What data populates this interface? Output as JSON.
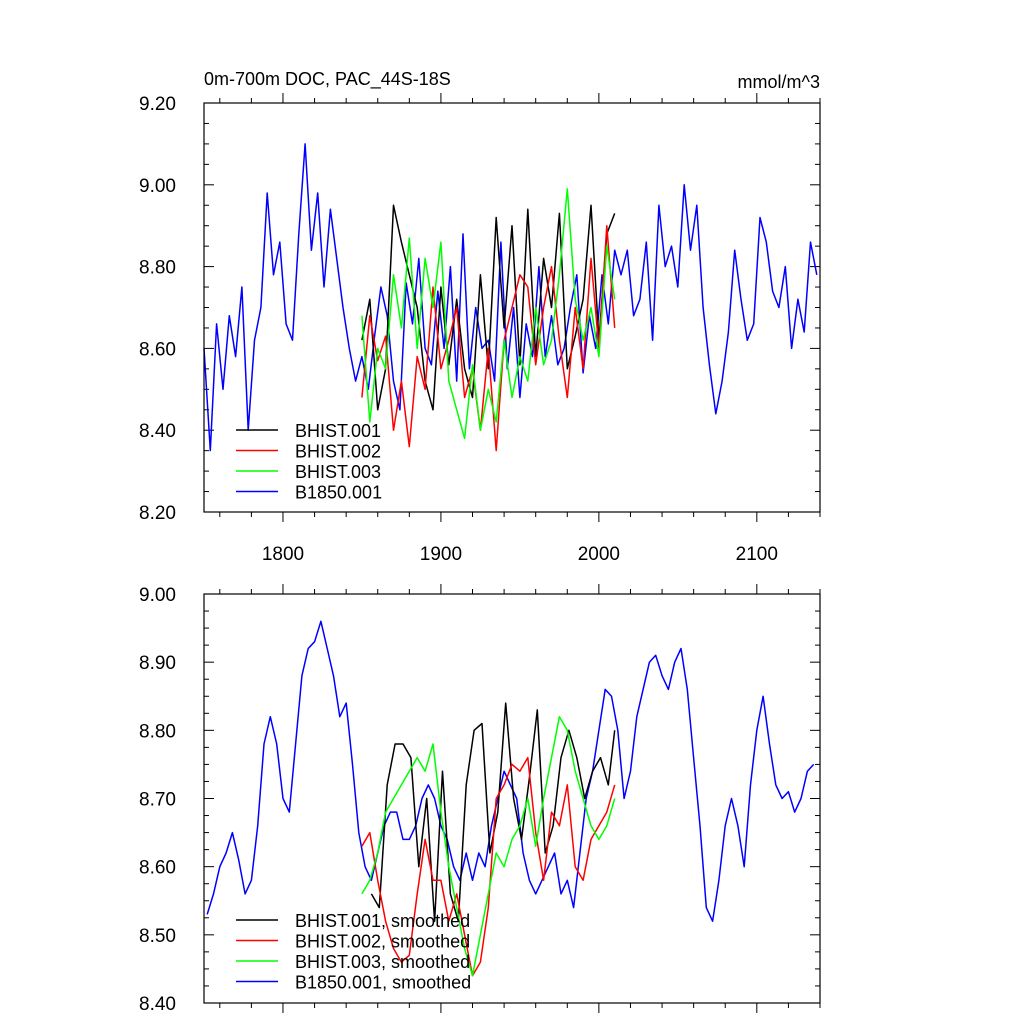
{
  "chart_data": [
    {
      "type": "line",
      "title_left": "0m-700m DOC, PAC_44S-18S",
      "title_right": "mmol/m^3",
      "xlim": [
        1750,
        2140
      ],
      "ylim": [
        8.2,
        9.2
      ],
      "xticks": [
        1800,
        1900,
        2000,
        2100
      ],
      "xticklabels": [
        "1800",
        "1900",
        "2000",
        "2100"
      ],
      "yticks": [
        8.2,
        8.4,
        8.6,
        8.8,
        9.0,
        9.2
      ],
      "yticklabels": [
        "8.20",
        "8.40",
        "8.60",
        "8.80",
        "9.00",
        "9.20"
      ],
      "grid": false,
      "legend_position": "bottom-left",
      "series": [
        {
          "name": "BHIST.001",
          "color": "#000000",
          "x": [
            1850,
            1855,
            1860,
            1865,
            1870,
            1875,
            1880,
            1885,
            1890,
            1895,
            1900,
            1905,
            1910,
            1915,
            1920,
            1925,
            1930,
            1935,
            1940,
            1945,
            1950,
            1955,
            1960,
            1965,
            1970,
            1975,
            1980,
            1985,
            1990,
            1995,
            2000,
            2005,
            2010
          ],
          "values": [
            8.62,
            8.72,
            8.45,
            8.55,
            8.95,
            8.86,
            8.78,
            8.7,
            8.52,
            8.45,
            8.75,
            8.56,
            8.72,
            8.55,
            8.48,
            8.78,
            8.55,
            8.92,
            8.65,
            8.9,
            8.56,
            8.94,
            8.58,
            8.82,
            8.7,
            8.93,
            8.55,
            8.63,
            8.72,
            8.95,
            8.62,
            8.88,
            8.93
          ]
        },
        {
          "name": "BHIST.002",
          "color": "#ff0000",
          "x": [
            1850,
            1855,
            1860,
            1865,
            1870,
            1875,
            1880,
            1885,
            1890,
            1895,
            1900,
            1905,
            1910,
            1915,
            1920,
            1925,
            1930,
            1935,
            1940,
            1945,
            1950,
            1955,
            1960,
            1965,
            1970,
            1975,
            1980,
            1985,
            1990,
            1995,
            2000,
            2005,
            2010
          ],
          "values": [
            8.48,
            8.68,
            8.57,
            8.63,
            8.4,
            8.52,
            8.36,
            8.58,
            8.5,
            8.75,
            8.55,
            8.62,
            8.7,
            8.48,
            8.55,
            8.4,
            8.6,
            8.35,
            8.62,
            8.7,
            8.78,
            8.75,
            8.56,
            8.7,
            8.8,
            8.62,
            8.48,
            8.7,
            8.55,
            8.82,
            8.6,
            8.9,
            8.65
          ]
        },
        {
          "name": "BHIST.003",
          "color": "#00ff00",
          "x": [
            1850,
            1855,
            1860,
            1865,
            1870,
            1875,
            1880,
            1885,
            1890,
            1895,
            1900,
            1905,
            1910,
            1915,
            1920,
            1925,
            1930,
            1935,
            1940,
            1945,
            1950,
            1955,
            1960,
            1965,
            1970,
            1975,
            1980,
            1985,
            1990,
            1995,
            2000,
            2005,
            2010
          ],
          "values": [
            8.68,
            8.42,
            8.6,
            8.55,
            8.78,
            8.65,
            8.87,
            8.6,
            8.82,
            8.7,
            8.86,
            8.52,
            8.45,
            8.38,
            8.56,
            8.4,
            8.5,
            8.42,
            8.62,
            8.48,
            8.58,
            8.52,
            8.7,
            8.56,
            8.62,
            8.78,
            8.99,
            8.72,
            8.62,
            8.7,
            8.58,
            8.85,
            8.72
          ]
        },
        {
          "name": "B1850.001",
          "color": "#0000ff",
          "x": [
            1750,
            1754,
            1758,
            1762,
            1766,
            1770,
            1774,
            1778,
            1782,
            1786,
            1790,
            1794,
            1798,
            1802,
            1806,
            1810,
            1814,
            1818,
            1822,
            1826,
            1830,
            1834,
            1838,
            1842,
            1846,
            1850,
            1854,
            1858,
            1862,
            1866,
            1870,
            1874,
            1878,
            1882,
            1886,
            1890,
            1894,
            1898,
            1902,
            1906,
            1910,
            1914,
            1918,
            1922,
            1926,
            1930,
            1934,
            1938,
            1942,
            1946,
            1950,
            1954,
            1958,
            1962,
            1966,
            1970,
            1974,
            1978,
            1982,
            1986,
            1990,
            1994,
            1998,
            2002,
            2006,
            2010,
            2014,
            2018,
            2022,
            2026,
            2030,
            2034,
            2038,
            2042,
            2046,
            2050,
            2054,
            2058,
            2062,
            2066,
            2070,
            2074,
            2078,
            2082,
            2086,
            2090,
            2094,
            2098,
            2102,
            2106,
            2110,
            2114,
            2118,
            2122,
            2126,
            2130,
            2134,
            2138
          ],
          "values": [
            8.6,
            8.35,
            8.66,
            8.5,
            8.68,
            8.58,
            8.75,
            8.4,
            8.62,
            8.7,
            8.98,
            8.78,
            8.86,
            8.66,
            8.62,
            8.88,
            9.1,
            8.84,
            8.98,
            8.75,
            8.94,
            8.82,
            8.7,
            8.6,
            8.52,
            8.58,
            8.5,
            8.63,
            8.75,
            8.68,
            8.52,
            8.45,
            8.76,
            8.66,
            8.82,
            8.6,
            8.56,
            8.74,
            8.6,
            8.8,
            8.52,
            8.88,
            8.55,
            8.7,
            8.6,
            8.62,
            8.52,
            8.86,
            8.55,
            8.7,
            8.48,
            8.66,
            8.58,
            8.8,
            8.58,
            8.68,
            8.56,
            8.6,
            8.7,
            8.78,
            8.54,
            8.68,
            8.6,
            8.78,
            8.66,
            8.84,
            8.78,
            8.84,
            8.68,
            8.72,
            8.86,
            8.62,
            8.95,
            8.8,
            8.85,
            8.75,
            9.0,
            8.84,
            8.95,
            8.7,
            8.56,
            8.44,
            8.52,
            8.64,
            8.84,
            8.72,
            8.62,
            8.66,
            8.92,
            8.86,
            8.74,
            8.7,
            8.8,
            8.6,
            8.72,
            8.64,
            8.86,
            8.78
          ]
        }
      ]
    },
    {
      "type": "line",
      "xlim": [
        1750,
        2140
      ],
      "ylim": [
        8.4,
        9.0
      ],
      "xticks": [
        1800,
        1900,
        2000,
        2100
      ],
      "xticklabels": [],
      "yticks": [
        8.4,
        8.5,
        8.6,
        8.7,
        8.8,
        8.9,
        9.0
      ],
      "yticklabels": [
        "8.40",
        "8.50",
        "8.60",
        "8.70",
        "8.80",
        "8.90",
        "9.00"
      ],
      "grid": false,
      "legend_position": "bottom-left",
      "series": [
        {
          "name": "BHIST.001, smoothed",
          "color": "#000000",
          "x": [
            1856,
            1861,
            1866,
            1871,
            1876,
            1881,
            1886,
            1891,
            1896,
            1901,
            1906,
            1911,
            1916,
            1921,
            1926,
            1931,
            1936,
            1941,
            1946,
            1951,
            1956,
            1961,
            1966,
            1971,
            1976,
            1981,
            1986,
            1991,
            1996,
            2001,
            2006,
            2010
          ],
          "values": [
            8.56,
            8.54,
            8.72,
            8.78,
            8.78,
            8.76,
            8.6,
            8.7,
            8.52,
            8.74,
            8.56,
            8.52,
            8.72,
            8.8,
            8.81,
            8.62,
            8.68,
            8.84,
            8.7,
            8.64,
            8.73,
            8.83,
            8.62,
            8.66,
            8.76,
            8.8,
            8.76,
            8.7,
            8.74,
            8.76,
            8.72,
            8.8
          ]
        },
        {
          "name": "BHIST.002, smoothed",
          "color": "#ff0000",
          "x": [
            1850,
            1855,
            1860,
            1865,
            1870,
            1875,
            1880,
            1885,
            1890,
            1895,
            1900,
            1905,
            1910,
            1915,
            1920,
            1925,
            1930,
            1935,
            1940,
            1945,
            1950,
            1955,
            1960,
            1965,
            1970,
            1975,
            1980,
            1985,
            1990,
            1995,
            2000,
            2005,
            2010
          ],
          "values": [
            8.63,
            8.65,
            8.58,
            8.52,
            8.48,
            8.46,
            8.47,
            8.56,
            8.64,
            8.58,
            8.58,
            8.52,
            8.56,
            8.5,
            8.44,
            8.46,
            8.54,
            8.7,
            8.72,
            8.75,
            8.74,
            8.76,
            8.65,
            8.58,
            8.68,
            8.66,
            8.72,
            8.6,
            8.58,
            8.64,
            8.66,
            8.68,
            8.72
          ]
        },
        {
          "name": "BHIST.003, smoothed",
          "color": "#00ff00",
          "x": [
            1850,
            1855,
            1860,
            1865,
            1870,
            1875,
            1880,
            1885,
            1890,
            1895,
            1900,
            1905,
            1910,
            1915,
            1920,
            1925,
            1930,
            1935,
            1940,
            1945,
            1950,
            1955,
            1960,
            1965,
            1970,
            1975,
            1980,
            1985,
            1990,
            1995,
            2000,
            2005,
            2010
          ],
          "values": [
            8.56,
            8.58,
            8.62,
            8.68,
            8.7,
            8.72,
            8.74,
            8.76,
            8.74,
            8.78,
            8.68,
            8.6,
            8.54,
            8.48,
            8.44,
            8.5,
            8.56,
            8.62,
            8.6,
            8.64,
            8.66,
            8.7,
            8.63,
            8.7,
            8.76,
            8.82,
            8.8,
            8.74,
            8.7,
            8.66,
            8.64,
            8.66,
            8.7
          ]
        },
        {
          "name": "B1850.001, smoothed",
          "color": "#0000ff",
          "x": [
            1752,
            1756,
            1760,
            1764,
            1768,
            1772,
            1776,
            1780,
            1784,
            1788,
            1792,
            1796,
            1800,
            1804,
            1808,
            1812,
            1816,
            1820,
            1824,
            1828,
            1832,
            1836,
            1840,
            1844,
            1848,
            1852,
            1856,
            1860,
            1864,
            1868,
            1872,
            1876,
            1880,
            1884,
            1888,
            1892,
            1896,
            1900,
            1904,
            1908,
            1912,
            1916,
            1920,
            1924,
            1928,
            1932,
            1936,
            1940,
            1944,
            1948,
            1952,
            1956,
            1960,
            1964,
            1968,
            1972,
            1976,
            1980,
            1984,
            1988,
            1992,
            1996,
            2000,
            2004,
            2008,
            2012,
            2016,
            2020,
            2024,
            2028,
            2032,
            2036,
            2040,
            2044,
            2048,
            2052,
            2056,
            2060,
            2064,
            2068,
            2072,
            2076,
            2080,
            2084,
            2088,
            2092,
            2096,
            2100,
            2104,
            2108,
            2112,
            2116,
            2120,
            2124,
            2128,
            2132,
            2136
          ],
          "values": [
            8.53,
            8.56,
            8.6,
            8.62,
            8.65,
            8.61,
            8.56,
            8.58,
            8.66,
            8.78,
            8.82,
            8.78,
            8.7,
            8.68,
            8.78,
            8.88,
            8.92,
            8.93,
            8.96,
            8.92,
            8.88,
            8.82,
            8.84,
            8.75,
            8.65,
            8.6,
            8.58,
            8.62,
            8.66,
            8.68,
            8.68,
            8.64,
            8.64,
            8.66,
            8.7,
            8.72,
            8.7,
            8.66,
            8.64,
            8.6,
            8.58,
            8.62,
            8.58,
            8.62,
            8.6,
            8.66,
            8.7,
            8.74,
            8.72,
            8.7,
            8.62,
            8.58,
            8.56,
            8.58,
            8.6,
            8.62,
            8.56,
            8.58,
            8.54,
            8.62,
            8.7,
            8.74,
            8.8,
            8.86,
            8.85,
            8.8,
            8.7,
            8.74,
            8.82,
            8.86,
            8.9,
            8.91,
            8.88,
            8.86,
            8.9,
            8.92,
            8.86,
            8.76,
            8.66,
            8.54,
            8.52,
            8.58,
            8.66,
            8.7,
            8.66,
            8.6,
            8.72,
            8.8,
            8.85,
            8.78,
            8.72,
            8.7,
            8.71,
            8.68,
            8.7,
            8.74,
            8.75
          ]
        }
      ]
    }
  ]
}
